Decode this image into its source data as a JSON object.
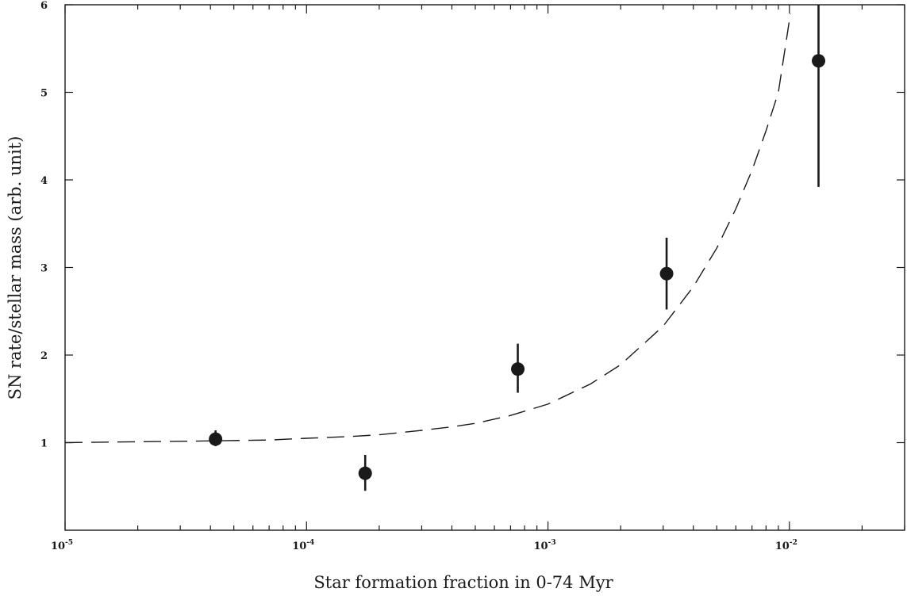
{
  "chart_data": {
    "type": "scatter",
    "title": "",
    "xlabel": "Star formation fraction in 0-74 Myr",
    "ylabel": "SN rate/stellar mass (arb. unit)",
    "xscale": "log",
    "xlim": [
      1e-05,
      0.03
    ],
    "ylim": [
      0,
      6
    ],
    "grid": false,
    "legend": "none",
    "x_ticks": [
      {
        "base": "10",
        "exp": "-5"
      },
      {
        "base": "10",
        "exp": "-4"
      },
      {
        "base": "10",
        "exp": "-3"
      },
      {
        "base": "10",
        "exp": "-2"
      }
    ],
    "y_ticks": [
      "1",
      "2",
      "3",
      "4",
      "5",
      "6"
    ],
    "series": [
      {
        "kind": "points",
        "x": [
          4.2e-05,
          0.000175,
          0.00075,
          0.0031,
          0.0132
        ],
        "y": [
          1.04,
          0.65,
          1.84,
          2.93,
          5.36
        ],
        "err_low": [
          0.08,
          0.2,
          0.27,
          0.41,
          1.44
        ],
        "err_high": [
          0.1,
          0.21,
          0.29,
          0.41,
          0.74
        ]
      },
      {
        "kind": "dashed-line",
        "x": [
          1e-05,
          2e-05,
          4e-05,
          7e-05,
          0.0001,
          0.00015,
          0.0002,
          0.0003,
          0.0004,
          0.0005,
          0.0007,
          0.001,
          0.0015,
          0.002,
          0.003,
          0.004,
          0.005,
          0.006,
          0.007,
          0.008,
          0.009,
          0.0101
        ],
        "y": [
          1.0,
          1.01,
          1.02,
          1.03,
          1.05,
          1.07,
          1.09,
          1.14,
          1.18,
          1.22,
          1.31,
          1.44,
          1.67,
          1.89,
          2.33,
          2.78,
          3.22,
          3.67,
          4.11,
          4.56,
          5.0,
          5.9
        ]
      }
    ]
  }
}
